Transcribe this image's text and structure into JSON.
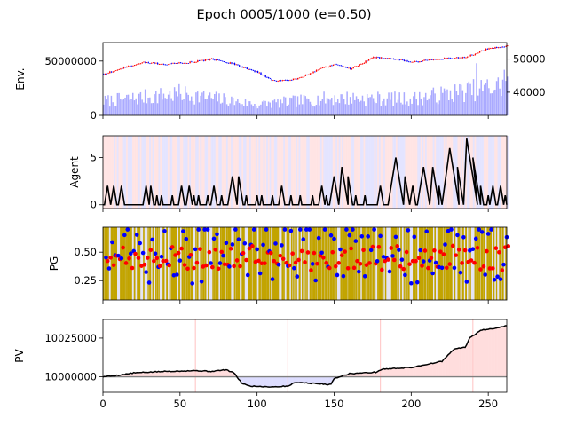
{
  "title": "Epoch 0005/1000 (e=0.50)",
  "colors": {
    "volume": "#aaaaff",
    "up_candle": "#ff0000",
    "down_candle": "#0000ff",
    "agent_bg_buy": "#ffdede",
    "agent_bg_sell": "#dedeff",
    "pg_band": "#c2a400",
    "pv_gain": "#ffdddd",
    "pv_loss": "#ddddff"
  },
  "chart_data": [
    {
      "type": "candlestick",
      "ylabel": "Env.",
      "xlim": [
        0,
        262
      ],
      "ylim_left": [
        0,
        67000000
      ],
      "yticks_left": [
        {
          "v": 0,
          "label": "0"
        },
        {
          "v": 50000000,
          "label": "50000000"
        }
      ],
      "ylim_right": [
        33000,
        55000
      ],
      "yticks_right": [
        {
          "v": 40000,
          "label": "40000"
        },
        {
          "v": 50000,
          "label": "50000"
        }
      ],
      "price_keypoints": [
        [
          0,
          45500
        ],
        [
          10,
          47000
        ],
        [
          25,
          49000
        ],
        [
          40,
          48500
        ],
        [
          55,
          49000
        ],
        [
          70,
          50000
        ],
        [
          85,
          48500
        ],
        [
          100,
          46000
        ],
        [
          110,
          43500
        ],
        [
          125,
          44000
        ],
        [
          140,
          47000
        ],
        [
          150,
          48500
        ],
        [
          160,
          47000
        ],
        [
          175,
          50500
        ],
        [
          190,
          50000
        ],
        [
          200,
          49000
        ],
        [
          215,
          50000
        ],
        [
          235,
          50500
        ],
        [
          248,
          53000
        ],
        [
          262,
          54000
        ]
      ],
      "volume_keypoints": [
        [
          0,
          13000000
        ],
        [
          50,
          20000000
        ],
        [
          100,
          10000000
        ],
        [
          150,
          16000000
        ],
        [
          200,
          15000000
        ],
        [
          262,
          28000000
        ]
      ]
    },
    {
      "type": "line",
      "ylabel": "Agent",
      "xlim": [
        0,
        262
      ],
      "ylim": [
        -0.4,
        7.3
      ],
      "yticks": [
        {
          "v": 0,
          "label": "0"
        },
        {
          "v": 5,
          "label": "5"
        }
      ]
    },
    {
      "type": "scatter",
      "ylabel": "PG",
      "xlim": [
        0,
        262
      ],
      "ylim": [
        0.08,
        0.72
      ],
      "yticks": [
        {
          "v": 0.25,
          "label": "0.25"
        },
        {
          "v": 0.5,
          "label": "0.50"
        }
      ],
      "series": [
        {
          "color": "blue"
        },
        {
          "color": "red"
        }
      ]
    },
    {
      "type": "area",
      "ylabel": "PV",
      "xlim": [
        0,
        262
      ],
      "ylim": [
        9990000,
        10037000
      ],
      "yticks": [
        {
          "v": 10000000,
          "label": "10000000"
        },
        {
          "v": 10025000,
          "label": "10025000"
        }
      ],
      "baseline": 10000000,
      "markers": [
        60,
        120,
        180,
        240
      ],
      "pv_keypoints": [
        [
          0,
          10000000
        ],
        [
          10,
          10001000
        ],
        [
          20,
          10002500
        ],
        [
          40,
          10003500
        ],
        [
          60,
          10004000
        ],
        [
          70,
          10003500
        ],
        [
          80,
          10004500
        ],
        [
          85,
          10002500
        ],
        [
          90,
          9996000
        ],
        [
          95,
          9994000
        ],
        [
          110,
          9993500
        ],
        [
          120,
          9994000
        ],
        [
          125,
          9996500
        ],
        [
          140,
          9995500
        ],
        [
          148,
          9995000
        ],
        [
          150,
          9999000
        ],
        [
          160,
          10002000
        ],
        [
          178,
          10003000
        ],
        [
          180,
          10004500
        ],
        [
          182,
          10005000
        ],
        [
          200,
          10006000
        ],
        [
          210,
          10008000
        ],
        [
          220,
          10010000
        ],
        [
          228,
          10018000
        ],
        [
          235,
          10019000
        ],
        [
          238,
          10025000
        ],
        [
          245,
          10030000
        ],
        [
          252,
          10031000
        ],
        [
          262,
          10033000
        ]
      ]
    }
  ],
  "xticks": [
    {
      "v": 0,
      "label": "0"
    },
    {
      "v": 50,
      "label": "50"
    },
    {
      "v": 100,
      "label": "100"
    },
    {
      "v": 150,
      "label": "150"
    },
    {
      "v": 200,
      "label": "200"
    },
    {
      "v": 250,
      "label": "250"
    }
  ]
}
